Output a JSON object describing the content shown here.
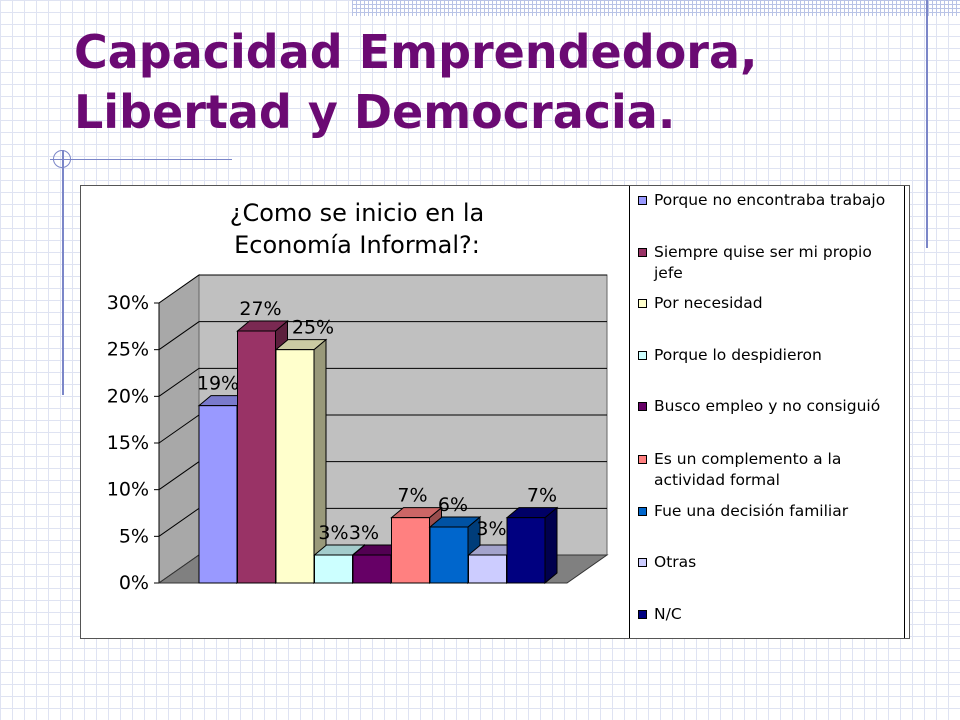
{
  "slide": {
    "title_line1": "Capacidad Emprendedora,",
    "title_line2": "Libertad y Democracia."
  },
  "chart_data": {
    "type": "bar",
    "title_lines": [
      "¿Como se inicio en la",
      "Economía Informal?:"
    ],
    "categories": [
      "Porque no encontraba trabajo",
      "Siempre quise ser mi propio jefe",
      "Por necesidad",
      "Porque lo despidieron",
      "Busco empleo y no consiguió",
      "Es un complemento a la actividad formal",
      "Fue una decisión familiar",
      "Otras",
      "N/C"
    ],
    "values": [
      19,
      27,
      25,
      3,
      3,
      7,
      6,
      3,
      7
    ],
    "data_labels": [
      "19%",
      "27%",
      "25%",
      "3%",
      "3%",
      "7%",
      "6%",
      "3%",
      "7%"
    ],
    "ylim": [
      0,
      30
    ],
    "y_ticks": [
      "0%",
      "5%",
      "10%",
      "15%",
      "20%",
      "25%",
      "30%"
    ],
    "colors": [
      "#9999ff",
      "#993366",
      "#ffffcc",
      "#ccffff",
      "#660066",
      "#ff8080",
      "#0066cc",
      "#ccccff",
      "#000080"
    ],
    "grid": true,
    "legend_position": "right",
    "three_d": true
  }
}
